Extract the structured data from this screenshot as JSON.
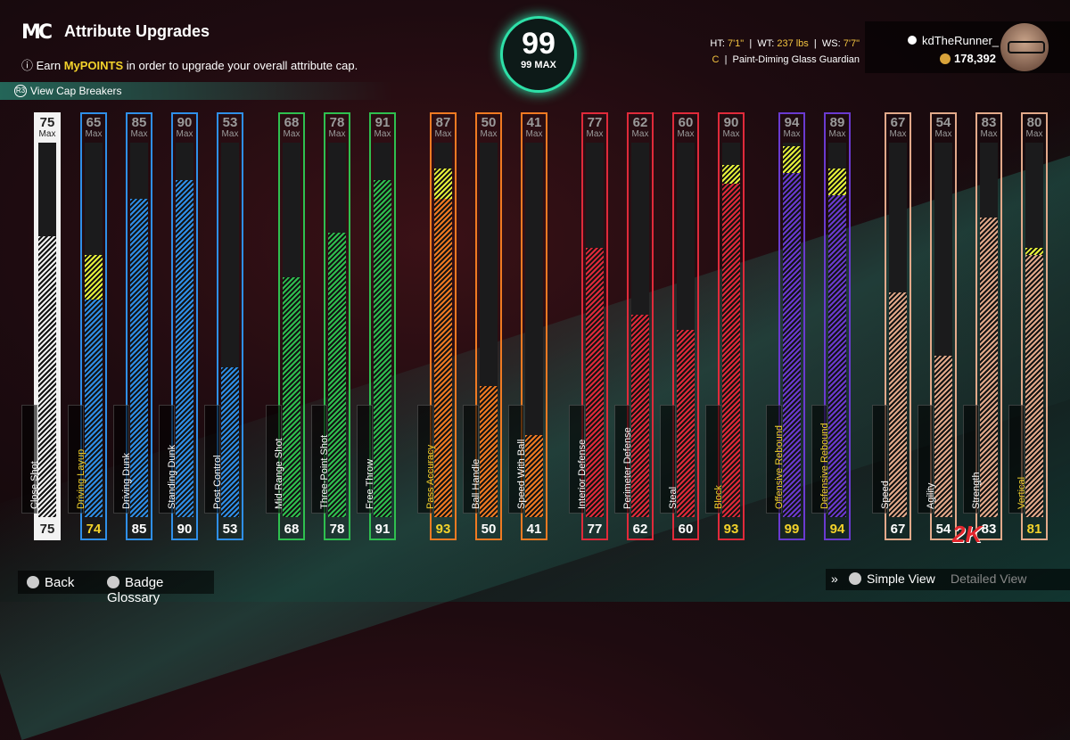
{
  "header": {
    "logo": "MC",
    "title": "Attribute Upgrades",
    "subtitle_prefix": "Earn ",
    "subtitle_highlight": "MyPOINTS",
    "subtitle_suffix": " in order to upgrade your overall attribute cap.",
    "cap_breakers": "View Cap Breakers"
  },
  "overall": {
    "value": "99",
    "max_label": "99 MAX"
  },
  "player": {
    "ht_label": "HT:",
    "ht": "7'1\"",
    "wt_label": "WT:",
    "wt": "237 lbs",
    "ws_label": "WS:",
    "ws": "7'7\"",
    "position": "C",
    "archetype": "Paint-Diming Glass Guardian"
  },
  "user": {
    "name": "kdTheRunner_",
    "vc": "178,392"
  },
  "attributes": [
    {
      "name": "Close Shot",
      "max": "75",
      "current": "75",
      "fill": 0.75,
      "boost": 0,
      "color": "#f2f2f2",
      "textcolor": "#222"
    },
    {
      "name": "Driving Layup",
      "max": "65",
      "current": "74",
      "fill": 0.58,
      "boost": 0.12,
      "color": "#2f8fe8",
      "textcolor": "#f3d22b"
    },
    {
      "name": "Driving Dunk",
      "max": "85",
      "current": "85",
      "fill": 0.85,
      "boost": 0,
      "color": "#2f8fe8",
      "textcolor": "#fff"
    },
    {
      "name": "Standing Dunk",
      "max": "90",
      "current": "90",
      "fill": 0.9,
      "boost": 0,
      "color": "#2f8fe8",
      "textcolor": "#fff"
    },
    {
      "name": "Post Control",
      "max": "53",
      "current": "53",
      "fill": 0.4,
      "boost": 0,
      "color": "#2f8fe8",
      "textcolor": "#fff"
    },
    {
      "name": "Mid-Range Shot",
      "max": "68",
      "current": "68",
      "fill": 0.64,
      "boost": 0,
      "color": "#2fbf4f",
      "textcolor": "#fff"
    },
    {
      "name": "Three-Point Shot",
      "max": "78",
      "current": "78",
      "fill": 0.76,
      "boost": 0,
      "color": "#2fbf4f",
      "textcolor": "#fff"
    },
    {
      "name": "Free Throw",
      "max": "91",
      "current": "91",
      "fill": 0.9,
      "boost": 0,
      "color": "#2fbf4f",
      "textcolor": "#fff"
    },
    {
      "name": "Pass Accuracy",
      "max": "87",
      "current": "93",
      "fill": 0.85,
      "boost": 0.08,
      "color": "#f07a22",
      "textcolor": "#f3d22b"
    },
    {
      "name": "Ball Handle",
      "max": "50",
      "current": "50",
      "fill": 0.35,
      "boost": 0,
      "color": "#f07a22",
      "textcolor": "#fff"
    },
    {
      "name": "Speed With Ball",
      "max": "41",
      "current": "41",
      "fill": 0.22,
      "boost": 0,
      "color": "#f07a22",
      "textcolor": "#fff"
    },
    {
      "name": "Interior Defense",
      "max": "77",
      "current": "77",
      "fill": 0.72,
      "boost": 0,
      "color": "#e02a3a",
      "textcolor": "#fff"
    },
    {
      "name": "Perimeter Defense",
      "max": "62",
      "current": "62",
      "fill": 0.54,
      "boost": 0,
      "color": "#e02a3a",
      "textcolor": "#fff"
    },
    {
      "name": "Steal",
      "max": "60",
      "current": "60",
      "fill": 0.5,
      "boost": 0,
      "color": "#e02a3a",
      "textcolor": "#fff"
    },
    {
      "name": "Block",
      "max": "90",
      "current": "93",
      "fill": 0.89,
      "boost": 0.05,
      "color": "#e02a3a",
      "textcolor": "#f3d22b"
    },
    {
      "name": "Offensive Rebound",
      "max": "94",
      "current": "99",
      "fill": 0.92,
      "boost": 0.07,
      "color": "#6a3ad0",
      "textcolor": "#f3d22b"
    },
    {
      "name": "Defensive Rebound",
      "max": "89",
      "current": "94",
      "fill": 0.86,
      "boost": 0.07,
      "color": "#6a3ad0",
      "textcolor": "#f3d22b"
    },
    {
      "name": "Speed",
      "max": "67",
      "current": "67",
      "fill": 0.6,
      "boost": 0,
      "color": "#e2a98a",
      "textcolor": "#fff"
    },
    {
      "name": "Agility",
      "max": "54",
      "current": "54",
      "fill": 0.43,
      "boost": 0,
      "color": "#e2a98a",
      "textcolor": "#fff"
    },
    {
      "name": "Strength",
      "max": "83",
      "current": "83",
      "fill": 0.8,
      "boost": 0,
      "color": "#e2a98a",
      "textcolor": "#fff"
    },
    {
      "name": "Vertical",
      "max": "80",
      "current": "81",
      "fill": 0.7,
      "boost": 0.02,
      "color": "#e2a98a",
      "textcolor": "#f3d22b"
    }
  ],
  "max_label": "Max",
  "footer": {
    "back": "Back",
    "glossary": "Badge Glossary",
    "simple_view": "Simple View",
    "detailed_view": "Detailed View"
  },
  "brand": "2K"
}
